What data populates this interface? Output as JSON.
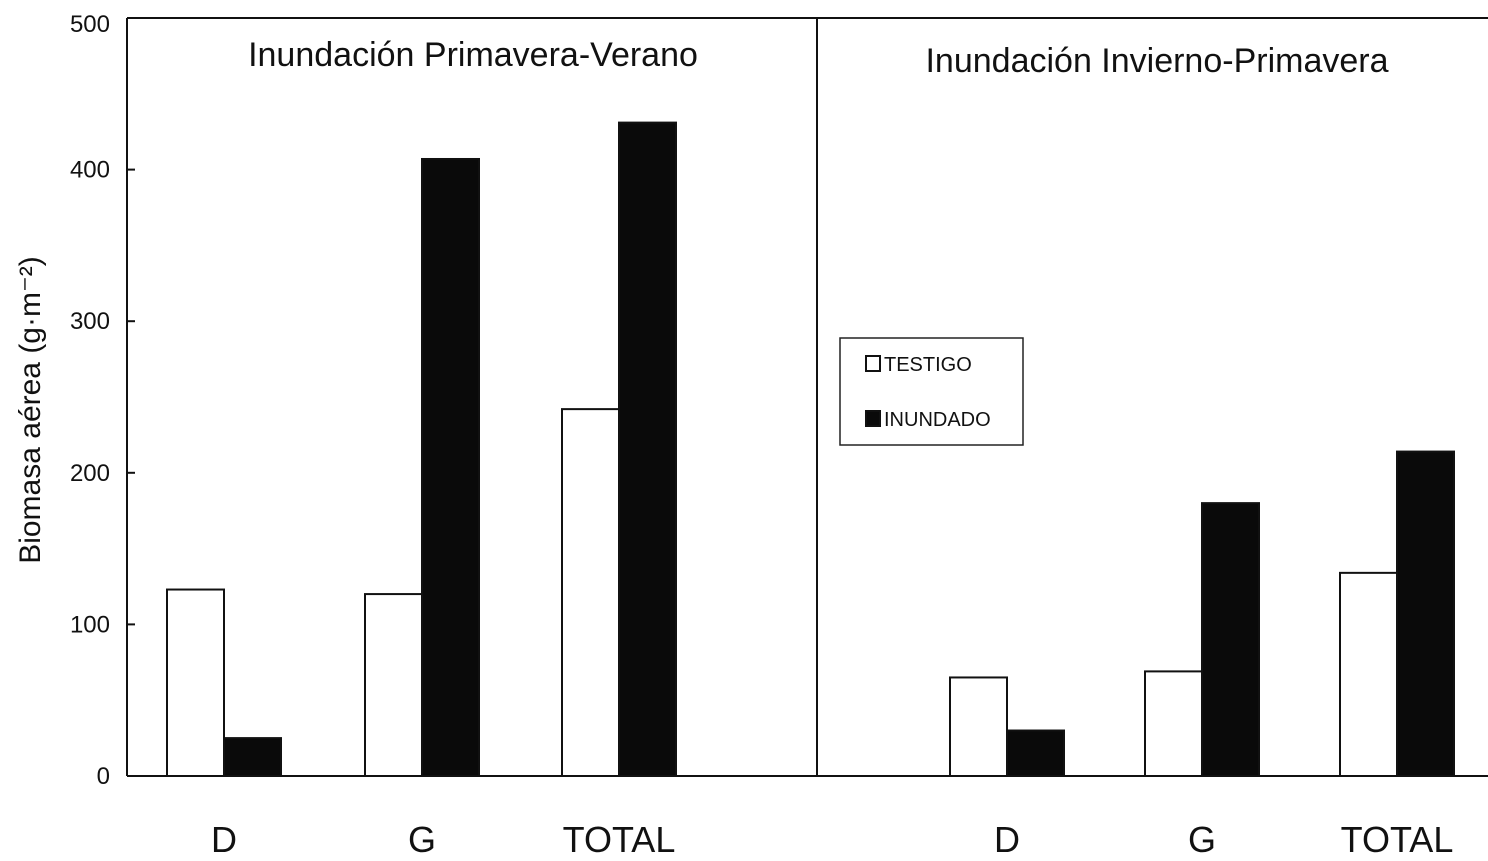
{
  "chart_data": {
    "type": "bar",
    "ylabel": "Biomasa aérea (g·m⁻²)",
    "ylim": [
      0,
      500
    ],
    "yticks": [
      0,
      100,
      200,
      300,
      400,
      500
    ],
    "series_names": [
      "TESTIGO",
      "INUNDADO"
    ],
    "series_colors": [
      "#ffffff",
      "#0a0a0a"
    ],
    "legend": {
      "position": "center-right",
      "entries": [
        "TESTIGO",
        "INUNDADO"
      ]
    },
    "grid": false,
    "panels": [
      {
        "title": "Inundación Primavera-Verano",
        "categories": [
          "D",
          "G",
          "TOTAL"
        ],
        "series": [
          {
            "name": "TESTIGO",
            "values": [
              123,
              120,
              242
            ]
          },
          {
            "name": "INUNDADO",
            "values": [
              25,
              407,
              431
            ]
          }
        ]
      },
      {
        "title": "Inundación Invierno-Primavera",
        "categories": [
          "D",
          "G",
          "TOTAL"
        ],
        "series": [
          {
            "name": "TESTIGO",
            "values": [
              65,
              69,
              134
            ]
          },
          {
            "name": "INUNDADO",
            "values": [
              30,
              180,
              214
            ]
          }
        ]
      }
    ]
  }
}
